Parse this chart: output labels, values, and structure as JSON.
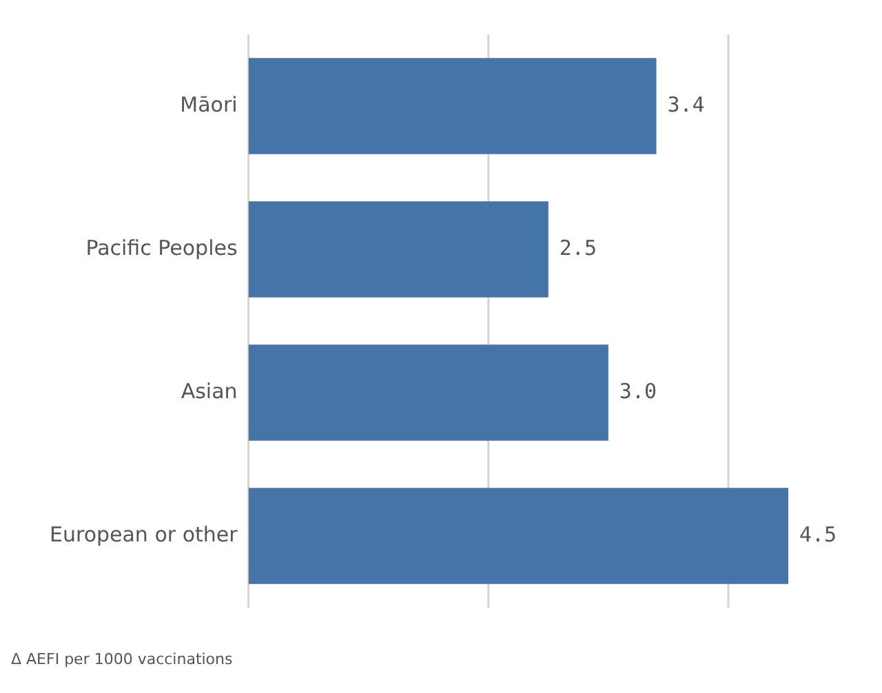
{
  "chart_data": {
    "type": "bar",
    "orientation": "horizontal",
    "categories": [
      "Māori",
      "Pacific Peoples",
      "Asian",
      "European or other"
    ],
    "values": [
      3.4,
      2.5,
      3.0,
      4.5
    ],
    "value_labels": [
      "3.4",
      "2.5",
      "3.0",
      "4.5"
    ],
    "color": "#4574a8",
    "ref_lines": [
      {
        "axis": "x",
        "value": 0,
        "color": "#d4d4d4"
      },
      {
        "axis": "x",
        "value": 2,
        "color": "#d4d4d4"
      },
      {
        "axis": "x",
        "value": 4,
        "color": "#d4d4d4"
      }
    ],
    "tick_labels": "y",
    "legend": false,
    "annotations": [
      "Δ AEFI per 1000 vaccinations"
    ]
  }
}
